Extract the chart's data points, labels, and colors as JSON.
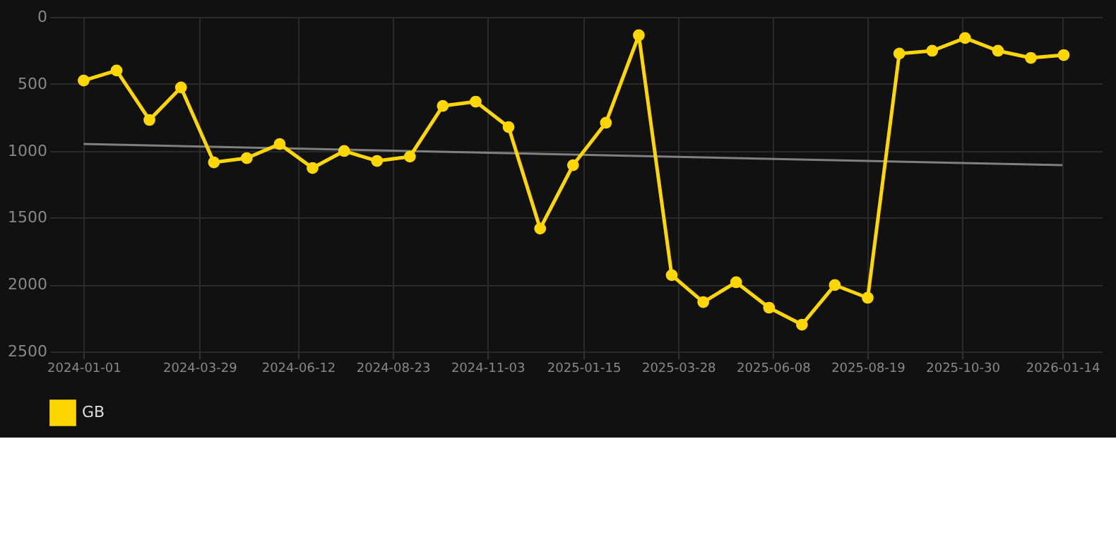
{
  "chart_data": {
    "type": "line",
    "x": [
      "2024-01-01",
      "2024-01-26",
      "2024-02-20",
      "2024-03-15",
      "2024-04-09",
      "2024-05-04",
      "2024-05-29",
      "2024-06-23",
      "2024-07-17",
      "2024-08-11",
      "2024-09-05",
      "2024-09-30",
      "2024-10-25",
      "2024-11-19",
      "2024-12-13",
      "2025-01-07",
      "2025-02-01",
      "2025-02-26",
      "2025-03-23",
      "2025-04-16",
      "2025-05-11",
      "2025-06-05",
      "2025-06-30",
      "2025-07-25",
      "2025-08-19",
      "2025-09-12",
      "2025-10-07",
      "2025-11-01",
      "2025-11-26",
      "2025-12-21",
      "2026-01-15"
    ],
    "series": [
      {
        "name": "GB",
        "color": "#ffd700",
        "marker": "circle",
        "values": [
          475,
          400,
          770,
          527,
          1087,
          1055,
          950,
          1129,
          1002,
          1076,
          1044,
          665,
          633,
          823,
          1582,
          1108,
          791,
          137,
          1930,
          2131,
          1983,
          2173,
          2300,
          2004,
          2099,
          274,
          253,
          158,
          253,
          306,
          285
        ]
      },
      {
        "type": "line",
        "color": "#808080",
        "marker": "none",
        "x": [
          "2024-01-01",
          "2026-01-14"
        ],
        "values": [
          950,
          1108
        ]
      }
    ],
    "xlim": [
      "2023-12-06",
      "2026-02-13"
    ],
    "xticks": [
      "2024-01-01",
      "2024-03-29",
      "2024-06-12",
      "2024-08-23",
      "2024-11-03",
      "2025-01-15",
      "2025-03-28",
      "2025-06-08",
      "2025-08-19",
      "2025-10-30",
      "2026-01-14"
    ],
    "ylim": [
      2500,
      0
    ],
    "yticks": [
      0,
      500,
      1000,
      1500,
      2000,
      2500
    ],
    "grid": true,
    "legend": "bottom"
  }
}
